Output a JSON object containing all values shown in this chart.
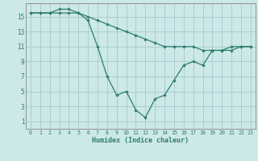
{
  "title": "",
  "xlabel": "Humidex (Indice chaleur)",
  "ylabel": "",
  "bg_color": "#cce8e8",
  "grid_color": "#aacfcf",
  "line_color": "#2e7d6e",
  "x_ticks": [
    0,
    1,
    2,
    3,
    4,
    5,
    6,
    7,
    8,
    9,
    10,
    11,
    12,
    13,
    14,
    15,
    16,
    17,
    18,
    19,
    20,
    21,
    22,
    23
  ],
  "y_ticks": [
    1,
    3,
    5,
    7,
    9,
    11,
    13,
    15
  ],
  "ylim": [
    0.0,
    16.8
  ],
  "xlim": [
    -0.5,
    23.5
  ],
  "line1_x": [
    0,
    1,
    2,
    3,
    4,
    5,
    6,
    7,
    8,
    9,
    10,
    11,
    12,
    13,
    14,
    15,
    16,
    17,
    18,
    19,
    20,
    21,
    22,
    23
  ],
  "line1_y": [
    15.5,
    15.5,
    15.5,
    15.5,
    15.5,
    15.5,
    15.0,
    14.5,
    14.0,
    13.5,
    13.0,
    12.5,
    12.0,
    11.5,
    11.0,
    11.0,
    11.0,
    11.0,
    10.5,
    10.5,
    10.5,
    11.0,
    11.0,
    11.0
  ],
  "line2_x": [
    0,
    1,
    2,
    3,
    4,
    5,
    6,
    7,
    8,
    9,
    10,
    11,
    12,
    13,
    14,
    15,
    16,
    17,
    18,
    19,
    20,
    21,
    22,
    23
  ],
  "line2_y": [
    15.5,
    15.5,
    15.5,
    16.0,
    16.0,
    15.5,
    14.5,
    11.0,
    7.0,
    4.5,
    5.0,
    2.5,
    1.5,
    4.0,
    4.5,
    6.5,
    8.5,
    9.0,
    8.5,
    10.5,
    10.5,
    10.5,
    11.0,
    11.0
  ],
  "tick_fontsize_x": 4.8,
  "tick_fontsize_y": 5.5,
  "xlabel_fontsize": 6.0,
  "linewidth": 0.9,
  "markersize": 2.2
}
